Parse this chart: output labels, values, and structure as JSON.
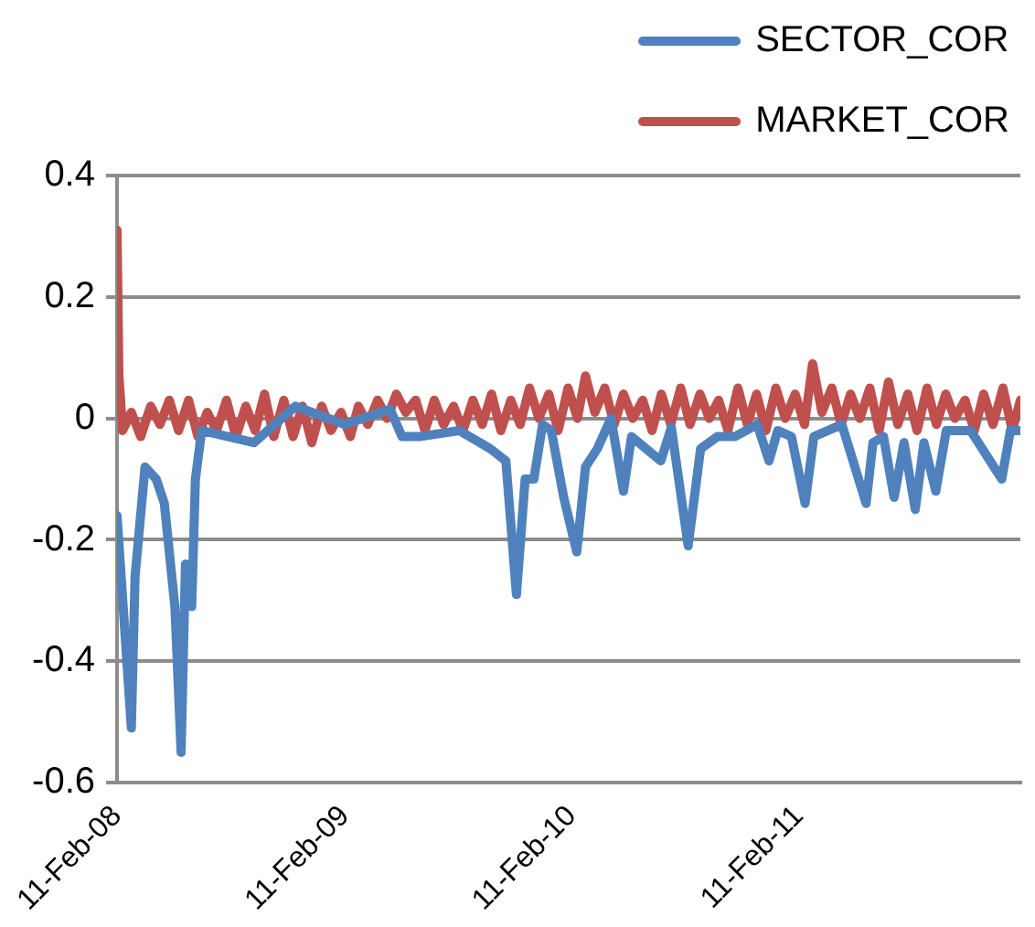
{
  "chart_data": {
    "type": "line",
    "xlim": [
      "2008-02-11",
      "2012-02-02"
    ],
    "ylim": [
      -0.6,
      0.4
    ],
    "yticks": [
      -0.6,
      -0.4,
      -0.2,
      0,
      0.2,
      0.4
    ],
    "xticks": [
      {
        "value": "2008-02-11",
        "label": "11-Feb-08"
      },
      {
        "value": "2009-02-11",
        "label": "11-Feb-09"
      },
      {
        "value": "2010-02-11",
        "label": "11-Feb-10"
      },
      {
        "value": "2011-02-11",
        "label": "11-Feb-11"
      }
    ],
    "grid": "y",
    "legend": "top right",
    "marker": "none",
    "series": [
      {
        "name": "SECTOR_COR",
        "color": "#4f81bd",
        "x": [
          "2008-02-11",
          "2008-03-05",
          "2008-03-11",
          "2008-03-27",
          "2008-04-14",
          "2008-04-27",
          "2008-05-14",
          "2008-05-24",
          "2008-05-31",
          "2008-06-10",
          "2008-06-16",
          "2008-06-26",
          "2008-09-18",
          "2008-11-24",
          "2009-02-11",
          "2009-04-25",
          "2009-05-14",
          "2009-06-11",
          "2009-08-14",
          "2009-10-03",
          "2009-10-28",
          "2009-11-14",
          "2009-11-28",
          "2009-12-12",
          "2009-12-26",
          "2010-01-09",
          "2010-01-29",
          "2010-02-19",
          "2010-03-05",
          "2010-03-24",
          "2010-04-15",
          "2010-05-05",
          "2010-05-18",
          "2010-07-04",
          "2010-07-21",
          "2010-08-17",
          "2010-09-06",
          "2010-10-03",
          "2010-10-31",
          "2010-12-06",
          "2010-12-25",
          "2011-01-08",
          "2011-01-30",
          "2011-02-21",
          "2011-03-07",
          "2011-04-21",
          "2011-05-30",
          "2011-06-10",
          "2011-06-27",
          "2011-07-14",
          "2011-07-30",
          "2011-08-17",
          "2011-08-31",
          "2011-09-19",
          "2011-10-06",
          "2011-11-14",
          "2012-01-03",
          "2012-01-17",
          "2012-02-02"
        ],
        "values": [
          -0.16,
          -0.51,
          -0.26,
          -0.08,
          -0.1,
          -0.14,
          -0.31,
          -0.55,
          -0.24,
          -0.31,
          -0.1,
          -0.02,
          -0.04,
          0.02,
          -0.01,
          0.015,
          -0.03,
          -0.03,
          -0.02,
          -0.05,
          -0.07,
          -0.29,
          -0.1,
          -0.1,
          -0.01,
          -0.02,
          -0.13,
          -0.22,
          -0.08,
          -0.05,
          0,
          -0.12,
          -0.03,
          -0.07,
          -0.015,
          -0.21,
          -0.05,
          -0.03,
          -0.03,
          -0.01,
          -0.07,
          -0.02,
          -0.03,
          -0.14,
          -0.03,
          -0.01,
          -0.14,
          -0.04,
          -0.03,
          -0.13,
          -0.04,
          -0.15,
          -0.04,
          -0.12,
          -0.02,
          -0.02,
          -0.1,
          -0.02,
          -0.02
        ]
      },
      {
        "name": "MARKET_COR",
        "color": "#c0504d",
        "x": [
          "2008-02-11",
          "2008-02-14",
          "2008-02-20",
          "2008-03-05",
          "2008-03-20",
          "2008-04-05",
          "2008-04-20",
          "2008-05-05",
          "2008-05-20",
          "2008-06-05",
          "2008-06-20",
          "2008-07-05",
          "2008-07-20",
          "2008-08-05",
          "2008-08-20",
          "2008-09-05",
          "2008-09-20",
          "2008-10-05",
          "2008-10-20",
          "2008-11-05",
          "2008-11-20",
          "2008-12-05",
          "2008-12-20",
          "2009-01-05",
          "2009-01-20",
          "2009-02-05",
          "2009-02-20",
          "2009-03-05",
          "2009-03-20",
          "2009-04-05",
          "2009-04-20",
          "2009-05-05",
          "2009-05-20",
          "2009-06-05",
          "2009-06-20",
          "2009-07-05",
          "2009-07-20",
          "2009-08-05",
          "2009-08-20",
          "2009-09-05",
          "2009-09-20",
          "2009-10-05",
          "2009-10-20",
          "2009-11-05",
          "2009-11-20",
          "2009-12-05",
          "2009-12-20",
          "2010-01-05",
          "2010-01-20",
          "2010-02-05",
          "2010-02-20",
          "2010-03-05",
          "2010-03-20",
          "2010-04-05",
          "2010-04-20",
          "2010-05-05",
          "2010-05-20",
          "2010-06-05",
          "2010-06-20",
          "2010-07-05",
          "2010-07-20",
          "2010-08-05",
          "2010-08-20",
          "2010-09-05",
          "2010-09-20",
          "2010-10-05",
          "2010-10-20",
          "2010-11-05",
          "2010-11-20",
          "2010-12-05",
          "2010-12-20",
          "2011-01-05",
          "2011-01-20",
          "2011-02-05",
          "2011-02-20",
          "2011-03-05",
          "2011-03-20",
          "2011-04-05",
          "2011-04-20",
          "2011-05-05",
          "2011-05-20",
          "2011-06-05",
          "2011-06-20",
          "2011-07-05",
          "2011-07-20",
          "2011-08-05",
          "2011-08-20",
          "2011-09-05",
          "2011-09-20",
          "2011-10-05",
          "2011-10-20",
          "2011-11-05",
          "2011-11-20",
          "2011-12-05",
          "2011-12-20",
          "2012-01-05",
          "2012-01-20",
          "2012-02-02"
        ],
        "values": [
          0.31,
          0.07,
          -0.02,
          0.01,
          -0.03,
          0.02,
          -0.01,
          0.03,
          -0.02,
          0.03,
          -0.03,
          0.01,
          -0.02,
          0.03,
          -0.03,
          0.02,
          -0.02,
          0.04,
          -0.03,
          0.03,
          -0.03,
          0.02,
          -0.04,
          0.02,
          -0.02,
          0.01,
          -0.03,
          0.02,
          -0.01,
          0.03,
          0,
          0.04,
          0.01,
          0.03,
          -0.02,
          0.03,
          -0.01,
          0.02,
          -0.02,
          0.03,
          -0.01,
          0.04,
          -0.02,
          0.03,
          -0.01,
          0.05,
          0,
          0.04,
          -0.02,
          0.05,
          0,
          0.07,
          0.01,
          0.05,
          -0.01,
          0.04,
          0,
          0.03,
          -0.02,
          0.04,
          -0.01,
          0.05,
          -0.01,
          0.04,
          0,
          0.03,
          -0.02,
          0.05,
          -0.01,
          0.04,
          -0.02,
          0.05,
          0,
          0.04,
          -0.01,
          0.09,
          0.01,
          0.05,
          -0.01,
          0.04,
          0,
          0.05,
          -0.02,
          0.06,
          -0.01,
          0.04,
          -0.02,
          0.05,
          -0.01,
          0.04,
          0,
          0.03,
          -0.02,
          0.04,
          -0.01,
          0.05,
          -0.02,
          0.03
        ]
      }
    ]
  }
}
